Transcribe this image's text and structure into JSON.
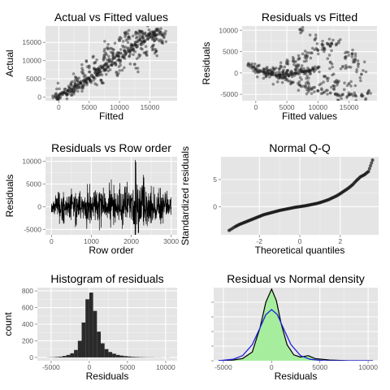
{
  "chart_data": [
    {
      "type": "scatter",
      "title": "Actual vs Fitted values",
      "xlabel": "Fitted",
      "ylabel": "Actual",
      "xlim": [
        -2200,
        19500
      ],
      "ylim": [
        -1000,
        19500
      ],
      "xticks": [
        0,
        5000,
        10000,
        15000
      ],
      "xtick_labels": [
        "0",
        "5000",
        "10000",
        "15000"
      ],
      "yticks": [
        0,
        5000,
        10000,
        15000
      ],
      "ytick_labels": [
        "0",
        "5000",
        "10000",
        "15000"
      ],
      "grid": true,
      "points": [
        [
          -600,
          300
        ],
        [
          -200,
          150
        ],
        [
          0,
          400
        ],
        [
          300,
          900
        ],
        [
          600,
          700
        ],
        [
          900,
          1200
        ],
        [
          1200,
          1000
        ],
        [
          1500,
          1800
        ],
        [
          1800,
          1500
        ],
        [
          2100,
          2200
        ],
        [
          2400,
          2000
        ],
        [
          2700,
          2900
        ],
        [
          3000,
          2500
        ],
        [
          3300,
          3300
        ],
        [
          3600,
          3900
        ],
        [
          3900,
          3100
        ],
        [
          4200,
          4400
        ],
        [
          4500,
          4000
        ],
        [
          4800,
          5200
        ],
        [
          5100,
          4700
        ],
        [
          5400,
          6000
        ],
        [
          5700,
          5400
        ],
        [
          6000,
          6800
        ],
        [
          6300,
          6200
        ],
        [
          6600,
          7500
        ],
        [
          6900,
          7000
        ],
        [
          7200,
          8200
        ],
        [
          7500,
          7600
        ],
        [
          7800,
          9000
        ],
        [
          8100,
          8200
        ],
        [
          8400,
          9800
        ],
        [
          8700,
          8800
        ],
        [
          9000,
          10600
        ],
        [
          9300,
          9400
        ],
        [
          9600,
          11300
        ],
        [
          9900,
          10200
        ],
        [
          10200,
          12000
        ],
        [
          10500,
          11000
        ],
        [
          10800,
          12800
        ],
        [
          11100,
          12100
        ],
        [
          11400,
          13400
        ],
        [
          11700,
          12600
        ],
        [
          12000,
          14200
        ],
        [
          12300,
          13100
        ],
        [
          12600,
          15000
        ],
        [
          12900,
          13800
        ],
        [
          13200,
          15600
        ],
        [
          13500,
          14600
        ],
        [
          13800,
          16200
        ],
        [
          14100,
          15300
        ],
        [
          14400,
          16800
        ],
        [
          14700,
          15900
        ],
        [
          15000,
          17400
        ],
        [
          15300,
          16500
        ],
        [
          15600,
          17800
        ],
        [
          15900,
          16900
        ],
        [
          16200,
          18200
        ],
        [
          16500,
          17300
        ],
        [
          16800,
          17700
        ],
        [
          17100,
          16900
        ],
        [
          7000,
          4600
        ],
        [
          8000,
          13500
        ],
        [
          9500,
          6800
        ],
        [
          11000,
          17200
        ],
        [
          12500,
          9000
        ],
        [
          13500,
          18000
        ],
        [
          14500,
          11500
        ],
        [
          15500,
          14000
        ],
        [
          16000,
          12500
        ],
        [
          17000,
          15000
        ],
        [
          6000,
          9500
        ],
        [
          5000,
          8500
        ],
        [
          10000,
          15500
        ],
        [
          11500,
          16500
        ],
        [
          13000,
          17500
        ],
        [
          9000,
          13000
        ],
        [
          7500,
          11500
        ],
        [
          4000,
          6500
        ],
        [
          3000,
          5000
        ],
        [
          2000,
          3500
        ]
      ]
    },
    {
      "type": "scatter",
      "title": "Residuals vs Fitted",
      "xlabel": "Fitted values",
      "ylabel": "Residuals",
      "xlim": [
        -2200,
        19500
      ],
      "ylim": [
        -6500,
        11000
      ],
      "xticks": [
        0,
        5000,
        10000,
        15000
      ],
      "xtick_labels": [
        "0",
        "5000",
        "10000",
        "15000"
      ],
      "yticks": [
        -5000,
        0,
        5000,
        10000
      ],
      "ytick_labels": [
        "-5000",
        "0",
        "5000",
        "10000"
      ],
      "grid": true,
      "points": [
        [
          -800,
          1800
        ],
        [
          -400,
          1400
        ],
        [
          0,
          1000
        ],
        [
          400,
          700
        ],
        [
          800,
          400
        ],
        [
          1200,
          200
        ],
        [
          1600,
          0
        ],
        [
          2000,
          -200
        ],
        [
          2400,
          -300
        ],
        [
          2800,
          -400
        ],
        [
          3200,
          -500
        ],
        [
          3600,
          -550
        ],
        [
          4000,
          -600
        ],
        [
          4400,
          -500
        ],
        [
          4800,
          -400
        ],
        [
          5200,
          -300
        ],
        [
          5600,
          -200
        ],
        [
          6000,
          -100
        ],
        [
          6400,
          0
        ],
        [
          6800,
          100
        ],
        [
          7200,
          200
        ],
        [
          7600,
          300
        ],
        [
          8000,
          400
        ],
        [
          8400,
          500
        ],
        [
          8800,
          600
        ],
        [
          9200,
          700
        ],
        [
          2000,
          600
        ],
        [
          3000,
          900
        ],
        [
          4000,
          1600
        ],
        [
          5000,
          2200
        ],
        [
          6000,
          2800
        ],
        [
          7000,
          3400
        ],
        [
          8000,
          4100
        ],
        [
          9000,
          4700
        ],
        [
          10000,
          5300
        ],
        [
          11000,
          5800
        ],
        [
          12000,
          6300
        ],
        [
          13000,
          6800
        ],
        [
          5000,
          -1500
        ],
        [
          6000,
          -2200
        ],
        [
          7000,
          -2800
        ],
        [
          8000,
          -3300
        ],
        [
          9000,
          -3800
        ],
        [
          10000,
          -4200
        ],
        [
          11000,
          -4500
        ],
        [
          12000,
          -4700
        ],
        [
          13000,
          -4900
        ],
        [
          14000,
          -5000
        ],
        [
          15000,
          -5100
        ],
        [
          16000,
          -5200
        ],
        [
          17000,
          -5300
        ],
        [
          10000,
          1200
        ],
        [
          11000,
          -800
        ],
        [
          12000,
          2500
        ],
        [
          13000,
          -1800
        ],
        [
          14000,
          1500
        ],
        [
          15000,
          -2500
        ],
        [
          16000,
          3200
        ],
        [
          17000,
          -300
        ],
        [
          18000,
          -4800
        ],
        [
          14500,
          3800
        ],
        [
          15500,
          4500
        ],
        [
          16500,
          2100
        ],
        [
          7200,
          10200
        ],
        [
          9500,
          7800
        ],
        [
          11500,
          6900
        ],
        [
          12500,
          -3000
        ],
        [
          8500,
          -2500
        ],
        [
          6500,
          1500
        ],
        [
          4500,
          -1100
        ]
      ]
    },
    {
      "type": "line",
      "title": "Residuals vs Row order",
      "xlabel": "Row order",
      "ylabel": "Residuals",
      "xlim": [
        -150,
        3150
      ],
      "ylim": [
        -6200,
        11000
      ],
      "xticks": [
        0,
        1000,
        2000,
        3000
      ],
      "xtick_labels": [
        "0",
        "1000",
        "2000",
        "3000"
      ],
      "yticks": [
        -5000,
        0,
        5000,
        10000
      ],
      "ytick_labels": [
        "-5000",
        "0",
        "5000",
        "10000"
      ],
      "grid": true,
      "n_rows": 3000,
      "series_note_values": [
        [
          0,
          -1200
        ],
        [
          100,
          2500
        ],
        [
          200,
          -3800
        ],
        [
          300,
          3200
        ],
        [
          400,
          -2000
        ],
        [
          500,
          4000
        ],
        [
          600,
          -4500
        ],
        [
          700,
          3000
        ],
        [
          800,
          -2600
        ],
        [
          900,
          5000
        ],
        [
          1000,
          -3000
        ],
        [
          1100,
          3600
        ],
        [
          1200,
          -5200
        ],
        [
          1300,
          4200
        ],
        [
          1400,
          -2500
        ],
        [
          1500,
          6000
        ],
        [
          1600,
          -3500
        ],
        [
          1700,
          3800
        ],
        [
          1800,
          -4000
        ],
        [
          1900,
          5500
        ],
        [
          2000,
          -2800
        ],
        [
          2100,
          10300
        ],
        [
          2200,
          -3300
        ],
        [
          2300,
          7000
        ],
        [
          2400,
          -4300
        ],
        [
          2500,
          4600
        ],
        [
          2600,
          -2900
        ],
        [
          2700,
          4100
        ],
        [
          2800,
          -3700
        ],
        [
          2900,
          3500
        ],
        [
          3000,
          -1800
        ]
      ]
    },
    {
      "type": "scatter",
      "title": "Normal Q-Q",
      "xlabel": "Theoretical quantiles",
      "ylabel": "Standardized residuals",
      "xlim": [
        -3.9,
        3.9
      ],
      "ylim": [
        -5.2,
        9.2
      ],
      "xticks": [
        -2,
        0,
        2
      ],
      "xtick_labels": [
        "-2",
        "0",
        "2"
      ],
      "yticks": [
        0,
        5
      ],
      "ytick_labels": [
        "0",
        "5"
      ],
      "grid": true,
      "points": [
        [
          -3.5,
          -4.4
        ],
        [
          -3.2,
          -3.7
        ],
        [
          -3.0,
          -3.3
        ],
        [
          -2.8,
          -3.0
        ],
        [
          -2.6,
          -2.7
        ],
        [
          -2.4,
          -2.4
        ],
        [
          -2.2,
          -2.1
        ],
        [
          -2.0,
          -1.8
        ],
        [
          -1.8,
          -1.5
        ],
        [
          -1.6,
          -1.3
        ],
        [
          -1.4,
          -1.1
        ],
        [
          -1.2,
          -0.9
        ],
        [
          -1.0,
          -0.7
        ],
        [
          -0.8,
          -0.55
        ],
        [
          -0.6,
          -0.4
        ],
        [
          -0.4,
          -0.25
        ],
        [
          -0.2,
          -0.1
        ],
        [
          0.0,
          0.0
        ],
        [
          0.2,
          0.12
        ],
        [
          0.4,
          0.25
        ],
        [
          0.6,
          0.4
        ],
        [
          0.8,
          0.55
        ],
        [
          1.0,
          0.75
        ],
        [
          1.2,
          1.0
        ],
        [
          1.4,
          1.25
        ],
        [
          1.6,
          1.6
        ],
        [
          1.8,
          1.95
        ],
        [
          2.0,
          2.4
        ],
        [
          2.2,
          2.9
        ],
        [
          2.4,
          3.4
        ],
        [
          2.6,
          4.0
        ],
        [
          2.8,
          4.8
        ],
        [
          3.0,
          5.5
        ],
        [
          3.2,
          5.9
        ],
        [
          3.4,
          6.5
        ],
        [
          3.6,
          8.6
        ]
      ]
    },
    {
      "type": "bar",
      "title": "Histogram of residuals",
      "xlabel": "Residuals",
      "ylabel": "count",
      "xlim": [
        -6800,
        11500
      ],
      "ylim": [
        -40,
        840
      ],
      "xticks": [
        -5000,
        0,
        5000,
        10000
      ],
      "xtick_labels": [
        "-5000",
        "0",
        "5000",
        "10000"
      ],
      "yticks": [
        0,
        200,
        400,
        600,
        800
      ],
      "ytick_labels": [
        "0",
        "200",
        "400",
        "600",
        "800"
      ],
      "grid": true,
      "bin_width": 500,
      "bins": [
        [
          -5500,
          2
        ],
        [
          -5000,
          3
        ],
        [
          -4500,
          6
        ],
        [
          -4000,
          10
        ],
        [
          -3500,
          18
        ],
        [
          -3000,
          30
        ],
        [
          -2500,
          50
        ],
        [
          -2000,
          90
        ],
        [
          -1500,
          200
        ],
        [
          -1000,
          420
        ],
        [
          -500,
          700
        ],
        [
          0,
          780
        ],
        [
          500,
          560
        ],
        [
          1000,
          310
        ],
        [
          1500,
          170
        ],
        [
          2000,
          100
        ],
        [
          2500,
          65
        ],
        [
          3000,
          45
        ],
        [
          3500,
          30
        ],
        [
          4000,
          22
        ],
        [
          4500,
          16
        ],
        [
          5000,
          12
        ],
        [
          5500,
          8
        ],
        [
          6000,
          6
        ],
        [
          6500,
          4
        ],
        [
          7000,
          3
        ],
        [
          7500,
          2
        ],
        [
          8000,
          2
        ],
        [
          8500,
          1
        ],
        [
          9000,
          1
        ],
        [
          9500,
          0
        ],
        [
          10000,
          1
        ]
      ]
    },
    {
      "type": "area",
      "title": "Residual vs Normal density",
      "xlabel": "Residuals",
      "ylabel": "",
      "xlim": [
        -6000,
        11000
      ],
      "ylim": [
        0,
        1
      ],
      "xticks": [
        -5000,
        0,
        5000,
        10000
      ],
      "xtick_labels": [
        "-5000",
        "0",
        "5000",
        "10000"
      ],
      "yticks": [
        0,
        0.2,
        0.4,
        0.6,
        0.8
      ],
      "ytick_labels": [
        "",
        "",
        "",
        "",
        ""
      ],
      "grid": true,
      "series": [
        {
          "key": "density",
          "color": "#000000",
          "points": [
            [
              -5500,
              0.0
            ],
            [
              -4000,
              0.01
            ],
            [
              -3000,
              0.03
            ],
            [
              -2000,
              0.12
            ],
            [
              -1200,
              0.45
            ],
            [
              -600,
              0.8
            ],
            [
              0,
              0.98
            ],
            [
              500,
              0.82
            ],
            [
              1000,
              0.5
            ],
            [
              1600,
              0.22
            ],
            [
              2300,
              0.08
            ],
            [
              3000,
              0.05
            ],
            [
              3800,
              0.07
            ],
            [
              4500,
              0.03
            ],
            [
              6000,
              0.01
            ],
            [
              8000,
              0.0
            ],
            [
              10500,
              0.0
            ]
          ]
        },
        {
          "key": "normal",
          "color": "#2020e0",
          "points": [
            [
              -5500,
              0.0
            ],
            [
              -4000,
              0.02
            ],
            [
              -3000,
              0.07
            ],
            [
              -2000,
              0.22
            ],
            [
              -1200,
              0.45
            ],
            [
              -600,
              0.63
            ],
            [
              0,
              0.7
            ],
            [
              600,
              0.63
            ],
            [
              1200,
              0.45
            ],
            [
              2000,
              0.22
            ],
            [
              3000,
              0.07
            ],
            [
              4000,
              0.02
            ],
            [
              5500,
              0.0
            ],
            [
              8000,
              0.0
            ],
            [
              10500,
              0.0
            ]
          ]
        }
      ],
      "fill_color": "#a6ee9e"
    }
  ],
  "style": {
    "panel_bg": "#e5e5e5",
    "grid_major": "#ffffff",
    "grid_minor": "#f2f2f2",
    "point_color": "#1a1a1a",
    "bar_color": "#2a2a2a"
  }
}
